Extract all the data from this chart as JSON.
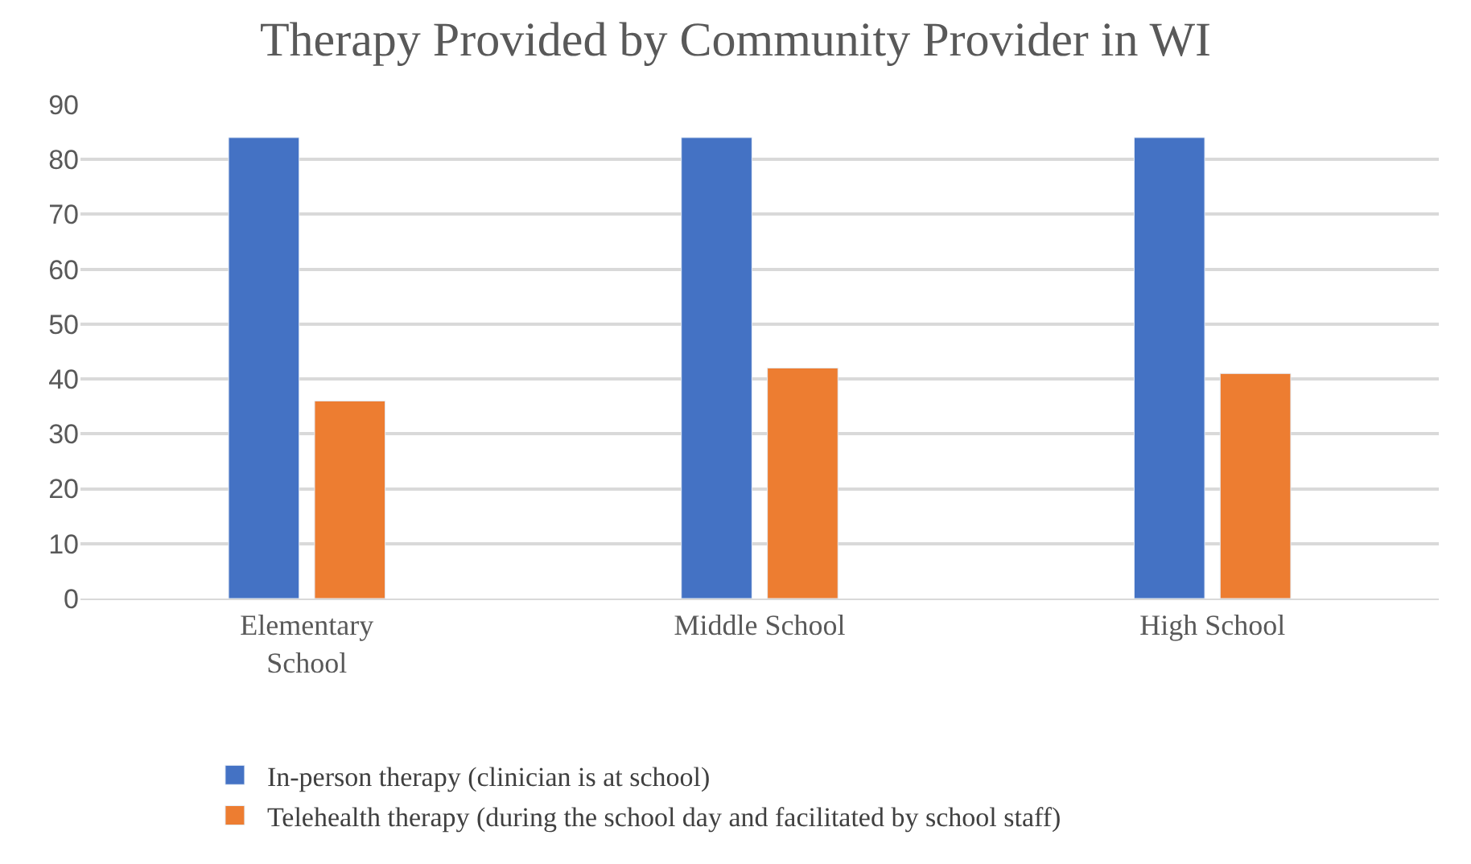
{
  "chart_data": {
    "type": "bar",
    "title": "Therapy Provided by Community Provider in WI",
    "categories": [
      "Elementary School",
      "Middle School",
      "High School"
    ],
    "series": [
      {
        "name": "In-person therapy (clinician is at school)",
        "color": "#4472c4",
        "values": [
          84,
          84,
          84
        ]
      },
      {
        "name": "Telehealth therapy (during the school day and facilitated by school staff)",
        "color": "#ed7d31",
        "values": [
          36,
          42,
          41
        ]
      }
    ],
    "ylim": [
      0,
      90
    ],
    "yticks": [
      0,
      10,
      20,
      30,
      40,
      50,
      60,
      70,
      80,
      90
    ],
    "grid": "y",
    "legend": "bottom"
  }
}
